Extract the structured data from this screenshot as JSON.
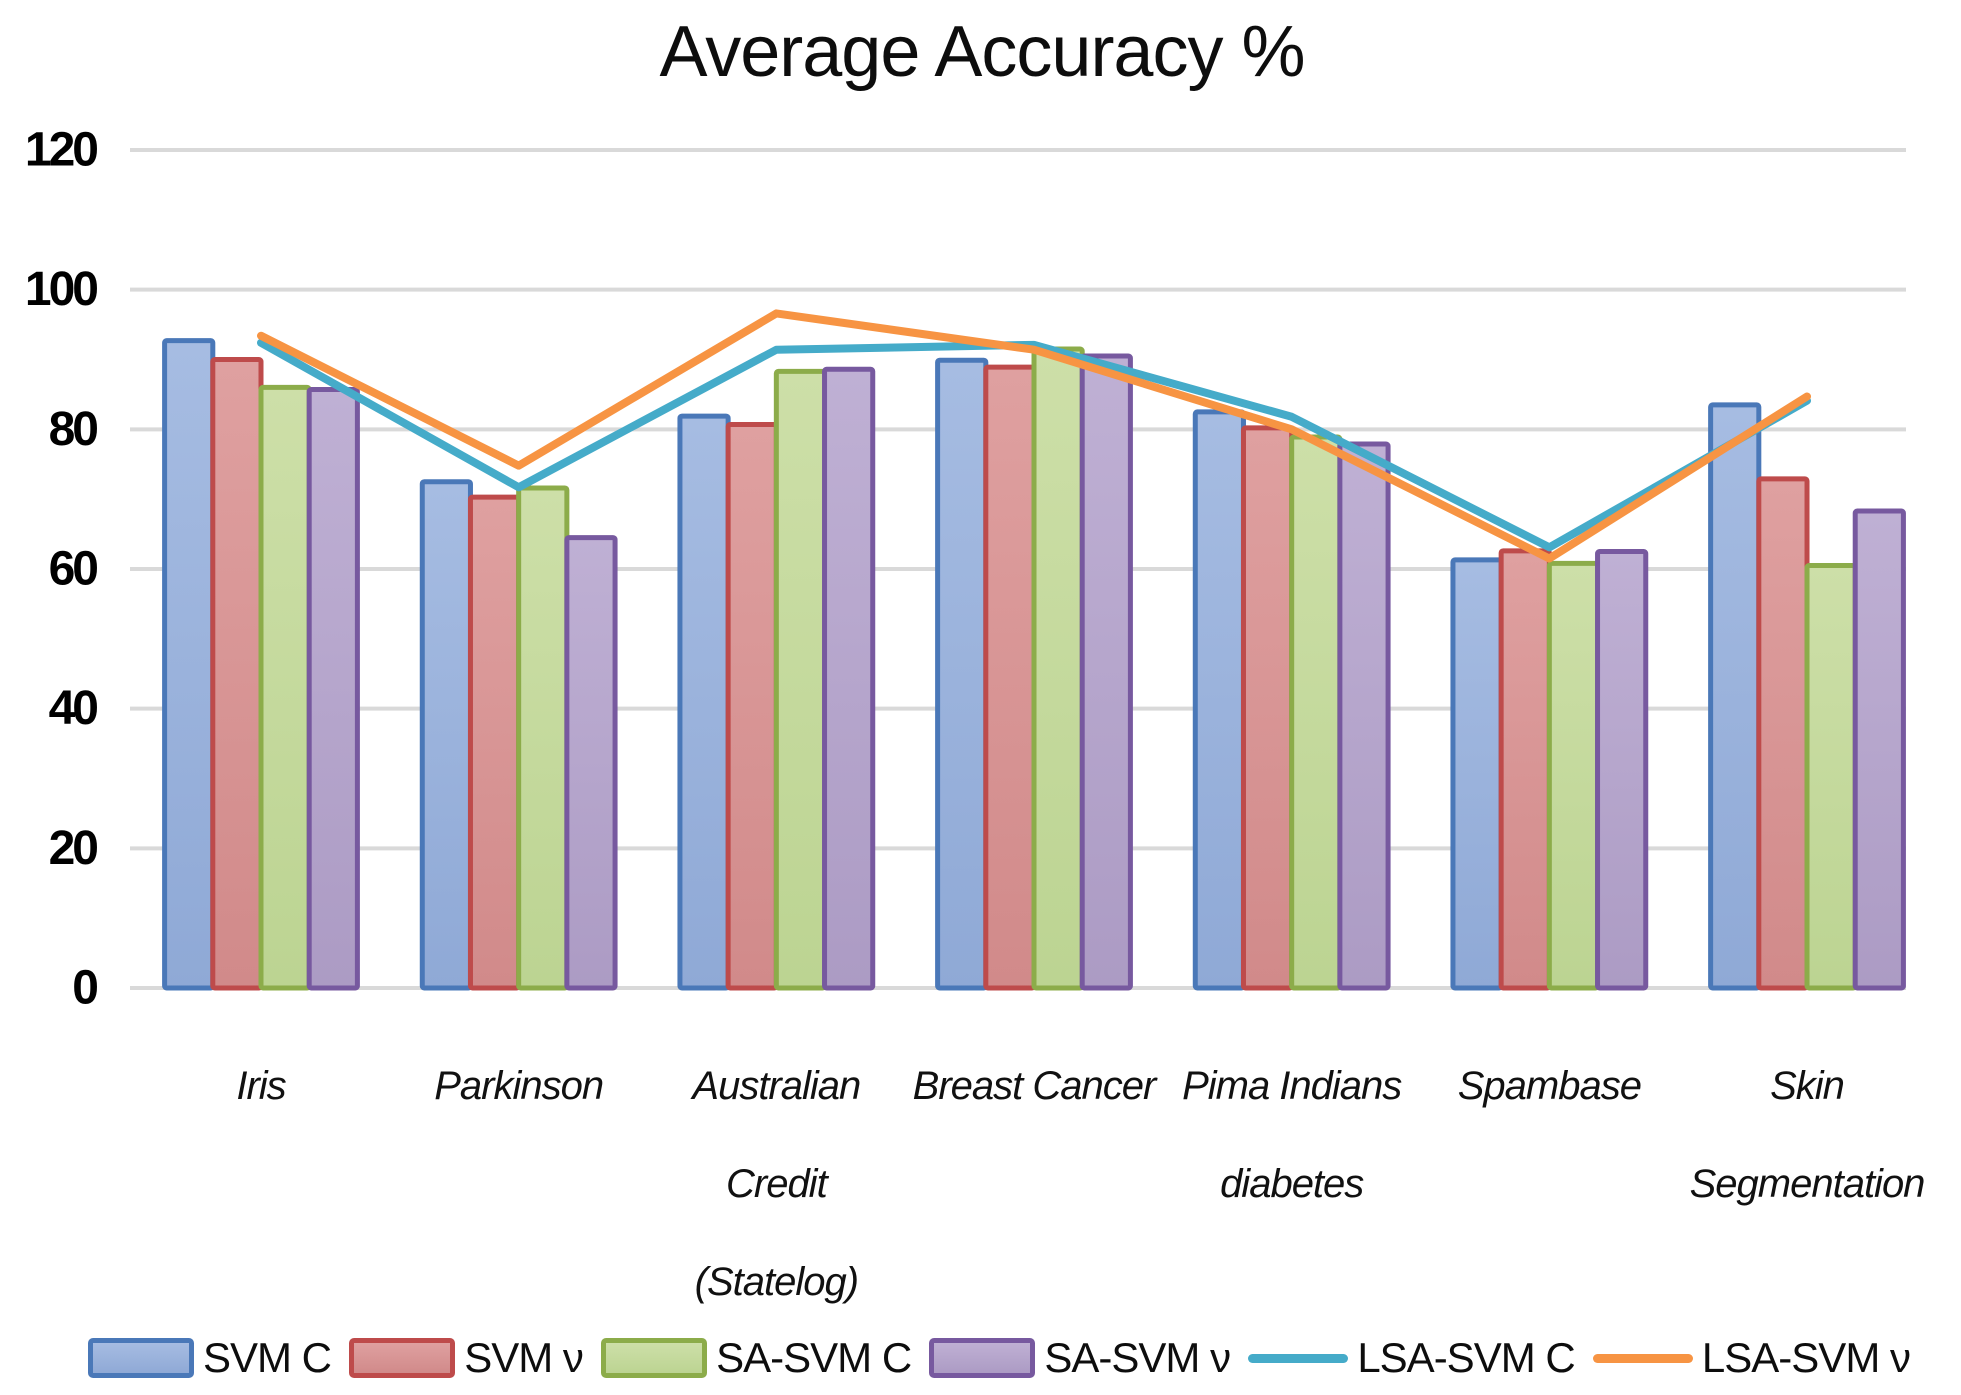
{
  "title": "Average Accuracy %",
  "colors": {
    "background": "#ffffff",
    "gridline": "#d9d9d9",
    "axis_text": "#000000",
    "category_text": "#111111"
  },
  "y_axis": {
    "tick_labels": [
      "0",
      "20",
      "40",
      "60",
      "80",
      "100",
      "120"
    ],
    "min": 0,
    "max": 120,
    "step": 20
  },
  "chart_data": {
    "type": "bar",
    "title": "Average Accuracy %",
    "xlabel": "",
    "ylabel": "",
    "ylim": [
      0,
      120
    ],
    "ytick_step": 20,
    "grid": true,
    "legend_position": "bottom",
    "categories": [
      "Iris",
      "Parkinson",
      "Australian Credit (Statelog)",
      "Breast Cancer",
      "Pima Indians diabetes",
      "Spambase",
      "Skin Segmentation"
    ],
    "category_lines": [
      [
        "Iris"
      ],
      [
        "Parkinson"
      ],
      [
        "Australian",
        "Credit",
        "(Statelog)"
      ],
      [
        "Breast Cancer"
      ],
      [
        "Pima Indians",
        "diabetes"
      ],
      [
        "Spambase"
      ],
      [
        "Skin",
        "Segmentation"
      ]
    ],
    "series": [
      {
        "name": "SVM C",
        "type": "bar",
        "values": [
          92.7,
          72.5,
          81.9,
          89.9,
          82.5,
          61.3,
          83.5
        ],
        "fill_top": "#a6bce2",
        "fill_bottom": "#8fa9d6",
        "border": "#4a78b8"
      },
      {
        "name": "SVM ν",
        "type": "bar",
        "values": [
          90.0,
          70.3,
          80.7,
          88.9,
          80.2,
          62.6,
          72.9
        ],
        "fill_top": "#dfa0a0",
        "fill_bottom": "#d18a8a",
        "border": "#be4b4b"
      },
      {
        "name": "SA-SVM C",
        "type": "bar",
        "values": [
          86.0,
          71.6,
          88.3,
          91.5,
          78.9,
          60.8,
          60.5
        ],
        "fill_top": "#cddfa8",
        "fill_bottom": "#bcd492",
        "border": "#8cac4a"
      },
      {
        "name": "SA-SVM ν",
        "type": "bar",
        "values": [
          85.7,
          64.5,
          88.6,
          90.5,
          77.9,
          62.5,
          68.3
        ],
        "fill_top": "#bfb0d4",
        "fill_bottom": "#ac9bc4",
        "border": "#77599f"
      },
      {
        "name": "LSA-SVM C",
        "type": "line",
        "values": [
          92.4,
          71.7,
          91.4,
          92.1,
          81.8,
          63.1,
          84.1
        ],
        "color": "#45abc9"
      },
      {
        "name": "LSA-SVM ν",
        "type": "line",
        "values": [
          93.4,
          74.8,
          96.6,
          91.4,
          80.0,
          61.5,
          84.7
        ],
        "color": "#f79443"
      }
    ]
  }
}
